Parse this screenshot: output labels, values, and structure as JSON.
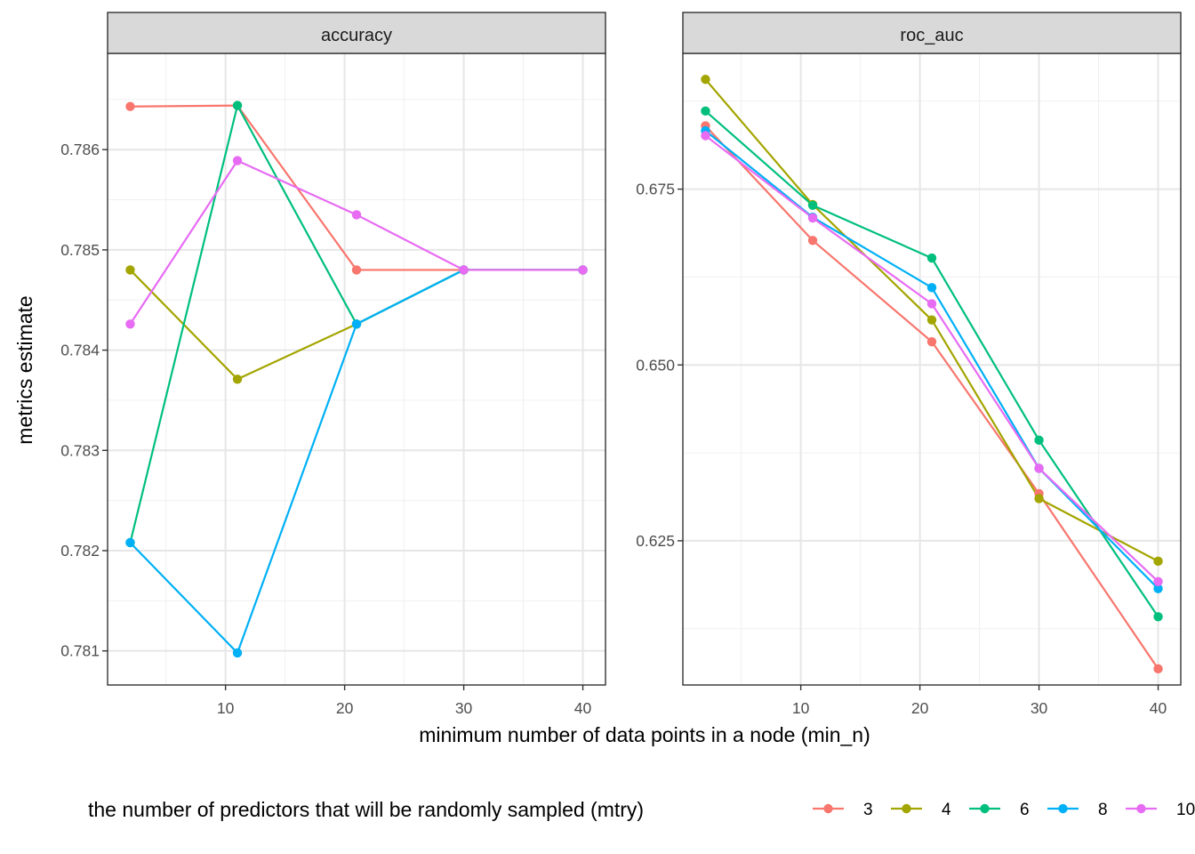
{
  "chart_data": {
    "type": "line",
    "xlabel": "minimum number of data points in a node (min_n)",
    "ylabel": "metrics estimate",
    "legend": {
      "title": "the number of predictors that will be randomly sampled (mtry)",
      "placement": "bottom"
    },
    "x": [
      2,
      11,
      21,
      30,
      40
    ],
    "xticks": [
      10,
      20,
      30,
      40
    ],
    "xticklabels": [
      "10",
      "20",
      "30",
      "40"
    ],
    "xlim": [
      0.1,
      41.9
    ],
    "series_colors": {
      "3": "#F8766D",
      "4": "#A3A500",
      "6": "#00BF7D",
      "8": "#00B0F6",
      "10": "#E76BF3"
    },
    "panels": [
      {
        "title": "accuracy",
        "ylim": [
          0.78066,
          0.78696
        ],
        "yticks": [
          0.781,
          0.782,
          0.783,
          0.784,
          0.785,
          0.786
        ],
        "yticklabels": [
          "0.781",
          "0.782",
          "0.783",
          "0.784",
          "0.785",
          "0.786"
        ],
        "series": [
          {
            "name": "3",
            "values": [
              0.78643,
              0.78644,
              0.7848,
              0.7848,
              0.7848
            ]
          },
          {
            "name": "4",
            "values": [
              0.7848,
              0.78371,
              0.78426,
              0.7848,
              0.7848
            ]
          },
          {
            "name": "6",
            "values": [
              0.78208,
              0.78644,
              0.78426,
              0.7848,
              0.7848
            ]
          },
          {
            "name": "8",
            "values": [
              0.78208,
              0.78098,
              0.78426,
              0.7848,
              0.7848
            ]
          },
          {
            "name": "10",
            "values": [
              0.78426,
              0.78589,
              0.78535,
              0.7848,
              0.7848
            ]
          }
        ]
      },
      {
        "title": "roc_auc",
        "ylim": [
          0.6045,
          0.6943
        ],
        "yticks": [
          0.625,
          0.65,
          0.675
        ],
        "yticklabels": [
          "0.625",
          "0.650",
          "0.675"
        ],
        "series": [
          {
            "name": "3",
            "values": [
              0.684,
              0.6677,
              0.6533,
              0.6317,
              0.6068
            ]
          },
          {
            "name": "4",
            "values": [
              0.6906,
              0.6728,
              0.6564,
              0.631,
              0.6221
            ]
          },
          {
            "name": "6",
            "values": [
              0.6861,
              0.6727,
              0.6652,
              0.6393,
              0.6142
            ]
          },
          {
            "name": "8",
            "values": [
              0.6833,
              0.671,
              0.661,
              0.6353,
              0.6182
            ]
          },
          {
            "name": "10",
            "values": [
              0.6826,
              0.6709,
              0.6587,
              0.6353,
              0.6192
            ]
          }
        ]
      }
    ]
  }
}
